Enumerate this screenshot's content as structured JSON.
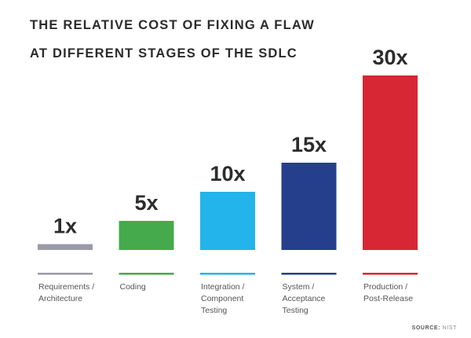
{
  "chart_data": {
    "type": "bar",
    "title_lines": [
      "THE RELATIVE COST OF FIXING A FLAW",
      "AT DIFFERENT STAGES OF THE SDLC"
    ],
    "categories": [
      [
        "Requirements /",
        "Architecture"
      ],
      [
        "Coding"
      ],
      [
        "Integration /",
        "Component",
        "Testing"
      ],
      [
        "System /",
        "Acceptance",
        "Testing"
      ],
      [
        "Production /",
        "Post-Release"
      ]
    ],
    "values": [
      1,
      5,
      10,
      15,
      30
    ],
    "value_labels": [
      "1x",
      "5x",
      "10x",
      "15x",
      "30x"
    ],
    "colors": [
      "#9a9aa8",
      "#45aa4b",
      "#22b4ea",
      "#253f8c",
      "#d72634"
    ],
    "ylim": [
      0,
      30
    ],
    "grid": false,
    "legend": "none"
  },
  "source": {
    "label": "SOURCE:",
    "value": "NIST"
  }
}
